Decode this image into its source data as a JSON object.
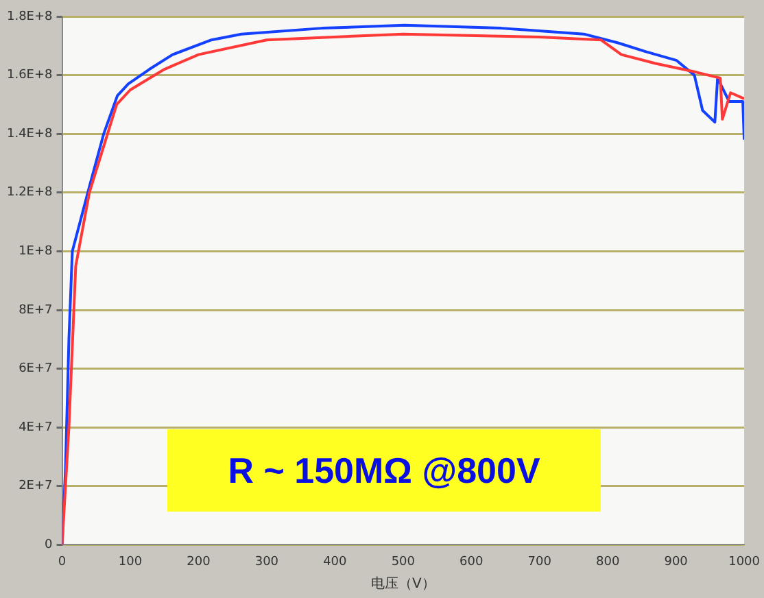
{
  "chart_data": {
    "type": "line",
    "xlabel": "电压（V）",
    "annotations": [
      "R ~ 150MΩ @800V"
    ],
    "xlim": [
      0,
      1000
    ],
    "xticks": [
      0,
      100,
      200,
      300,
      400,
      500,
      600,
      700,
      800,
      900,
      1000
    ],
    "ylim": [
      0,
      180000000
    ],
    "yticks": [
      {
        "value": 0,
        "label": "0"
      },
      {
        "value": 20000000,
        "label": "2E+7"
      },
      {
        "value": 40000000,
        "label": "4E+7"
      },
      {
        "value": 60000000,
        "label": "6E+7"
      },
      {
        "value": 80000000,
        "label": "8E+7"
      },
      {
        "value": 100000000,
        "label": "1E+8"
      },
      {
        "value": 120000000,
        "label": "1.2E+8"
      },
      {
        "value": 140000000,
        "label": "1.4E+8"
      },
      {
        "value": 160000000,
        "label": "1.6E+8"
      },
      {
        "value": 180000000,
        "label": "1.8E+8"
      }
    ],
    "grid": "y",
    "legend": false,
    "marker": "none",
    "line_style": "solid",
    "series": [
      {
        "color": "#ff3838",
        "x": [
          0,
          10,
          20,
          40,
          60,
          80,
          100,
          150,
          200,
          300,
          500,
          700,
          790,
          820,
          870,
          930,
          965,
          968,
          980,
          1000
        ],
        "values": [
          0,
          40000000,
          95000000,
          120000000,
          135000000,
          150000000,
          155000000,
          162000000,
          167000000,
          172000000,
          174000000,
          173000000,
          172000000,
          167000000,
          164000000,
          161000000,
          159000000,
          145000000,
          154000000,
          152000000
        ]
      },
      {
        "color": "#1440ff",
        "x": [
          0,
          5,
          10,
          15,
          40,
          61,
          81,
          97,
          128,
          162,
          219,
          263,
          381,
          502,
          644,
          765,
          815,
          856,
          901,
          927,
          939,
          957,
          961,
          978,
          998,
          1000
        ],
        "values": [
          0,
          26000000,
          70000000,
          100000000,
          122000000,
          140000000,
          153000000,
          157000000,
          162000000,
          167000000,
          172000000,
          174000000,
          176000000,
          177000000,
          176000000,
          174000000,
          171000000,
          168000000,
          165000000,
          160000000,
          148000000,
          144000000,
          159000000,
          151000000,
          151000000,
          138000000
        ]
      }
    ]
  }
}
